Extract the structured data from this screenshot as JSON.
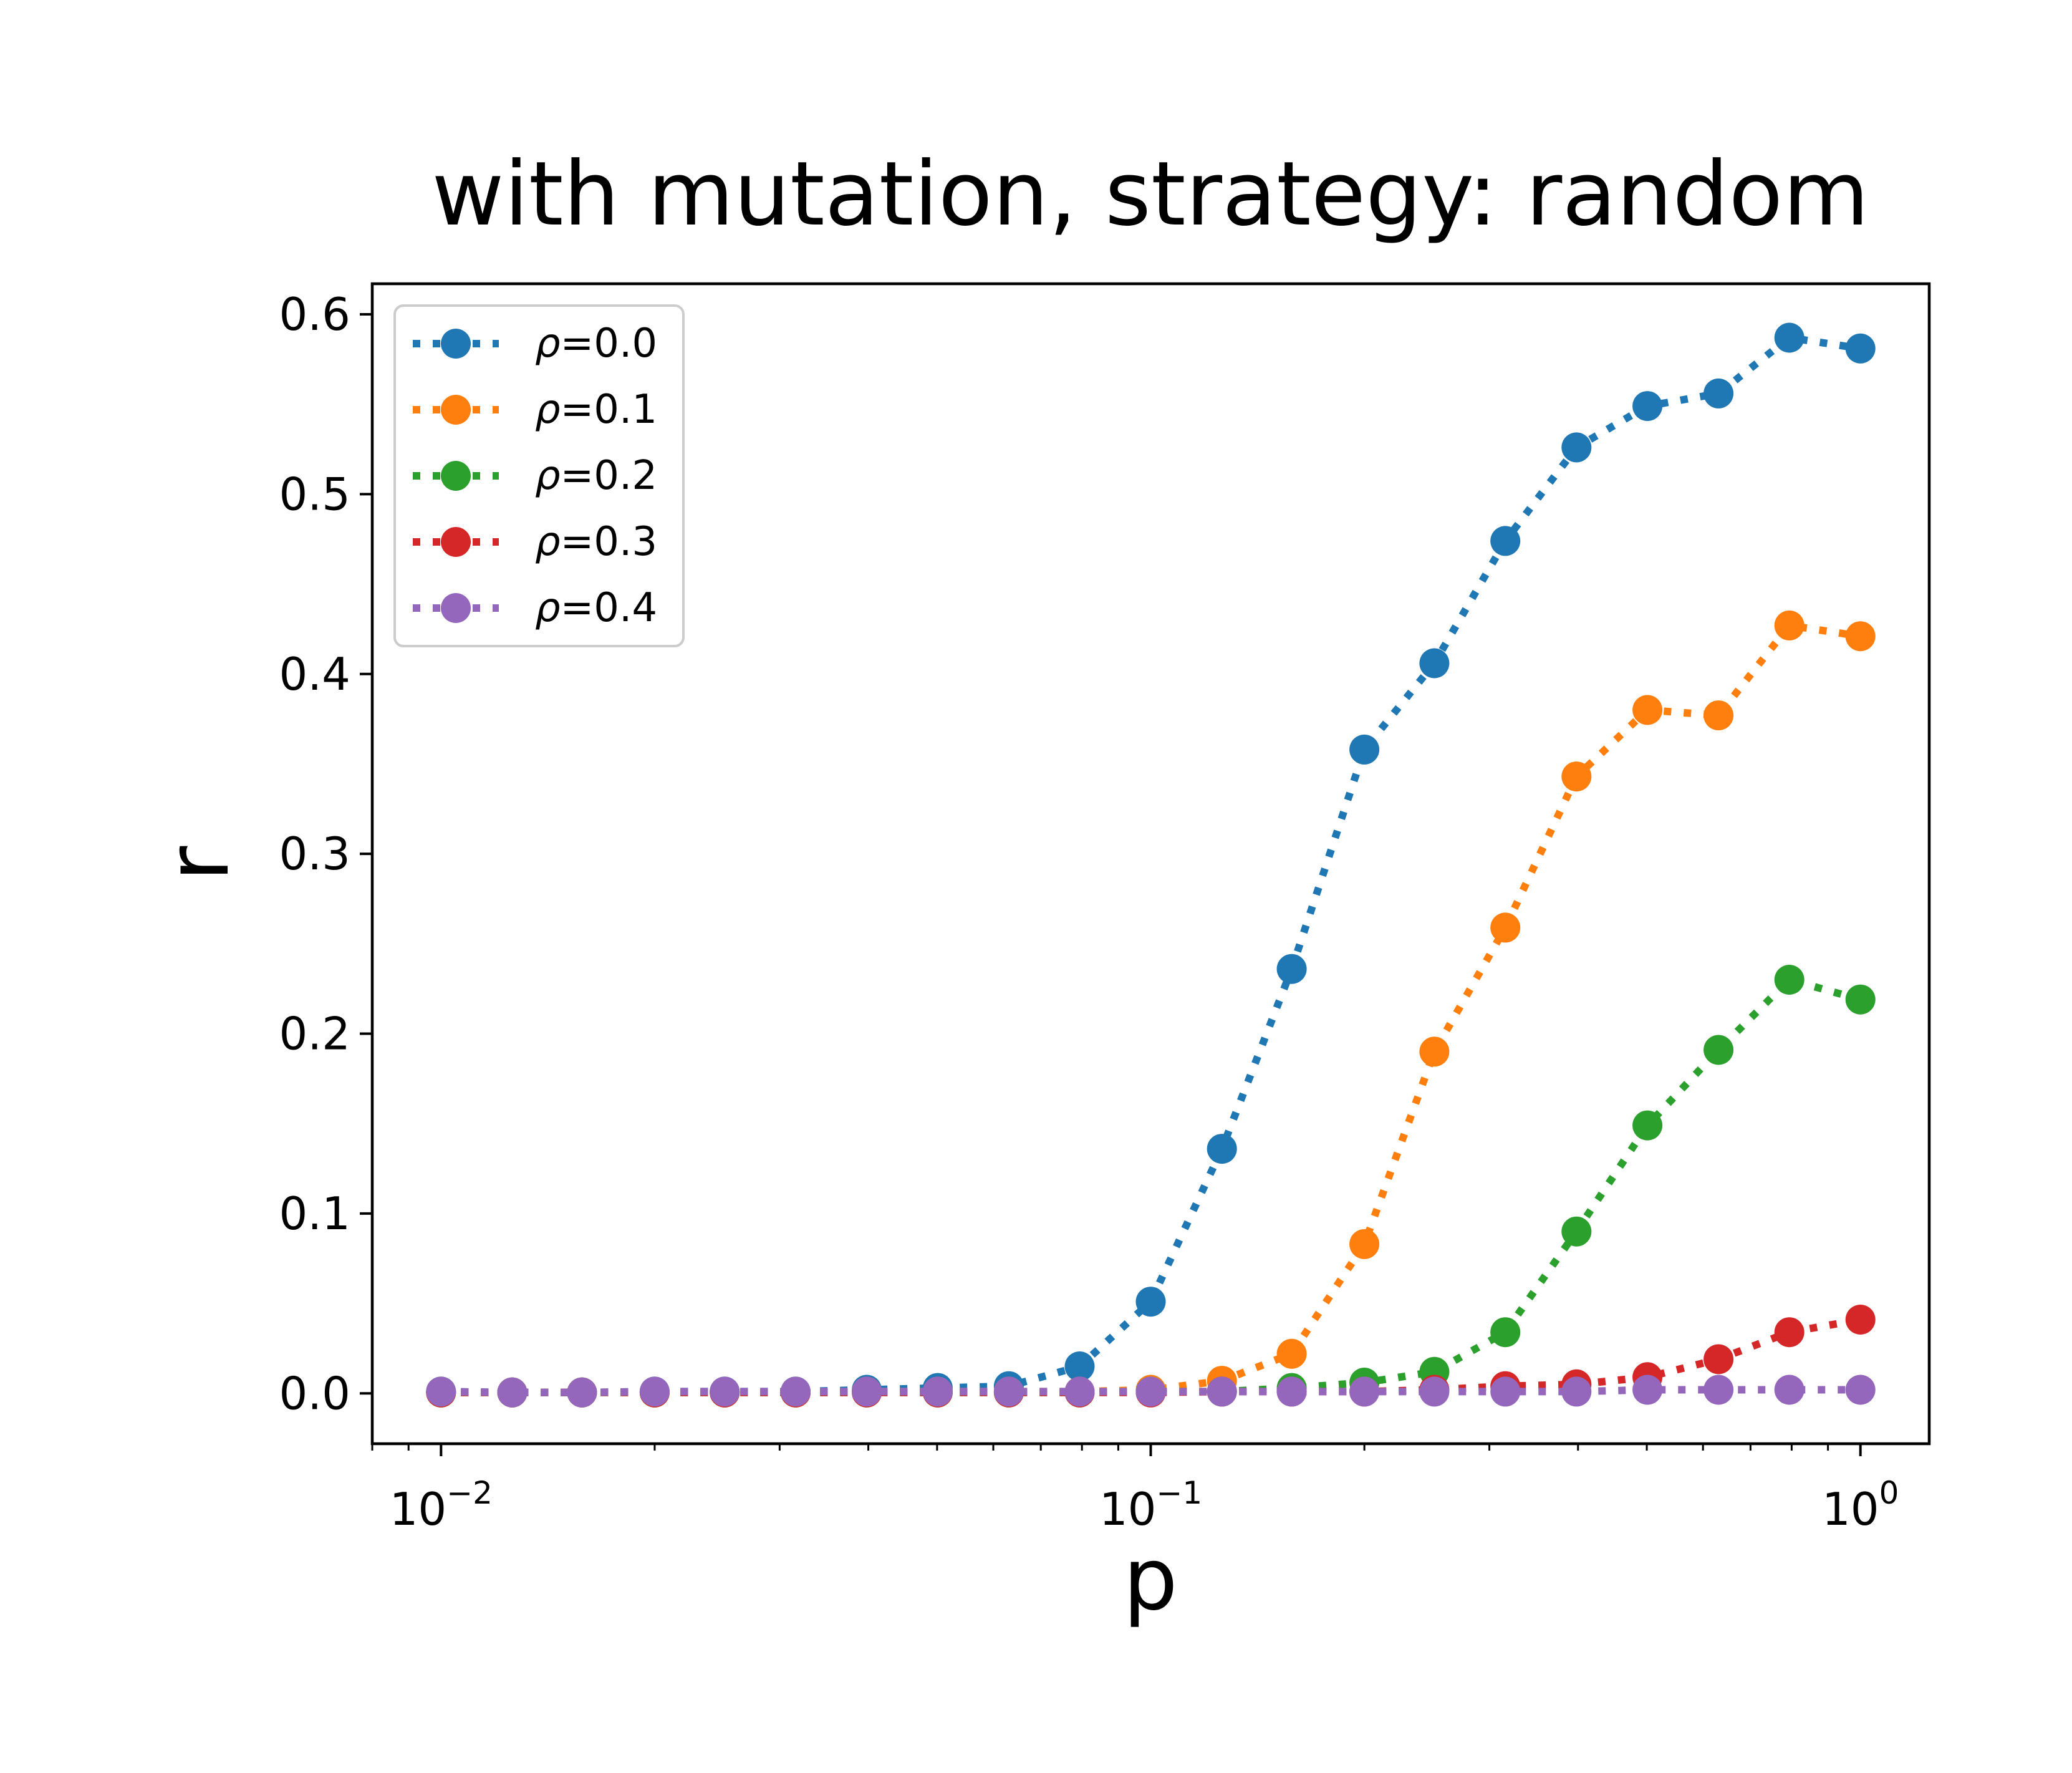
{
  "chart_data": {
    "type": "line",
    "title": "with mutation, strategy: random",
    "xlabel": "p",
    "ylabel": "r",
    "xscale": "log",
    "xlim": [
      0.008,
      1.25
    ],
    "ylim": [
      -0.028,
      0.617
    ],
    "grid": false,
    "legend_position": "top-left",
    "line_style": "dotted",
    "marker": "circle",
    "x_ticks": [
      {
        "value": 0.01,
        "base": "10",
        "exp": "−2"
      },
      {
        "value": 0.1,
        "base": "10",
        "exp": "−1"
      },
      {
        "value": 1,
        "base": "10",
        "exp": "0"
      }
    ],
    "y_ticks": [
      {
        "value": 0.0,
        "label": "0.0"
      },
      {
        "value": 0.1,
        "label": "0.1"
      },
      {
        "value": 0.2,
        "label": "0.2"
      },
      {
        "value": 0.3,
        "label": "0.3"
      },
      {
        "value": 0.4,
        "label": "0.4"
      },
      {
        "value": 0.5,
        "label": "0.5"
      },
      {
        "value": 0.6,
        "label": "0.6"
      }
    ],
    "x": [
      0.01,
      0.0126,
      0.0158,
      0.02,
      0.0251,
      0.0316,
      0.0398,
      0.0501,
      0.0631,
      0.0794,
      0.1,
      0.126,
      0.158,
      0.2,
      0.251,
      0.316,
      0.398,
      0.501,
      0.631,
      0.794,
      1.0
    ],
    "series": [
      {
        "name": "ρ=0.0",
        "legend_symbol": "ρ",
        "legend_value": "=0.0",
        "color": "#1f77b4",
        "values": [
          0.001,
          0.0005,
          0.0005,
          0.001,
          0.001,
          0.001,
          0.002,
          0.003,
          0.004,
          0.015,
          0.051,
          0.136,
          0.236,
          0.358,
          0.406,
          0.474,
          0.526,
          0.549,
          0.556,
          0.587,
          0.581
        ]
      },
      {
        "name": "ρ=0.1",
        "legend_symbol": "ρ",
        "legend_value": "=0.1",
        "color": "#ff7f0e",
        "values": [
          0.0005,
          0.0005,
          0.0005,
          0.0005,
          0.0005,
          0.0005,
          0.001,
          0.001,
          0.001,
          0.001,
          0.002,
          0.007,
          0.022,
          0.083,
          0.19,
          0.259,
          0.343,
          0.38,
          0.377,
          0.427,
          0.421
        ]
      },
      {
        "name": "ρ=0.2",
        "legend_symbol": "ρ",
        "legend_value": "=0.2",
        "color": "#2ca02c",
        "values": [
          0.0005,
          0.0005,
          0.0005,
          0.0005,
          0.0005,
          0.0005,
          0.0005,
          0.0005,
          0.0005,
          0.0005,
          0.001,
          0.001,
          0.003,
          0.006,
          0.012,
          0.034,
          0.09,
          0.149,
          0.191,
          0.23,
          0.219
        ]
      },
      {
        "name": "ρ=0.3",
        "legend_symbol": "ρ",
        "legend_value": "=0.3",
        "color": "#d62728",
        "values": [
          0.0005,
          0.0005,
          0.0005,
          0.0005,
          0.0005,
          0.0005,
          0.0005,
          0.0005,
          0.0005,
          0.0005,
          0.0005,
          0.001,
          0.001,
          0.001,
          0.002,
          0.004,
          0.005,
          0.009,
          0.019,
          0.034,
          0.041
        ]
      },
      {
        "name": "ρ=0.4",
        "legend_symbol": "ρ",
        "legend_value": "=0.4",
        "color": "#9467bd",
        "values": [
          0.001,
          0.0005,
          0.0005,
          0.001,
          0.001,
          0.001,
          0.001,
          0.001,
          0.001,
          0.001,
          0.001,
          0.001,
          0.001,
          0.001,
          0.001,
          0.001,
          0.001,
          0.002,
          0.002,
          0.002,
          0.002
        ]
      }
    ]
  }
}
